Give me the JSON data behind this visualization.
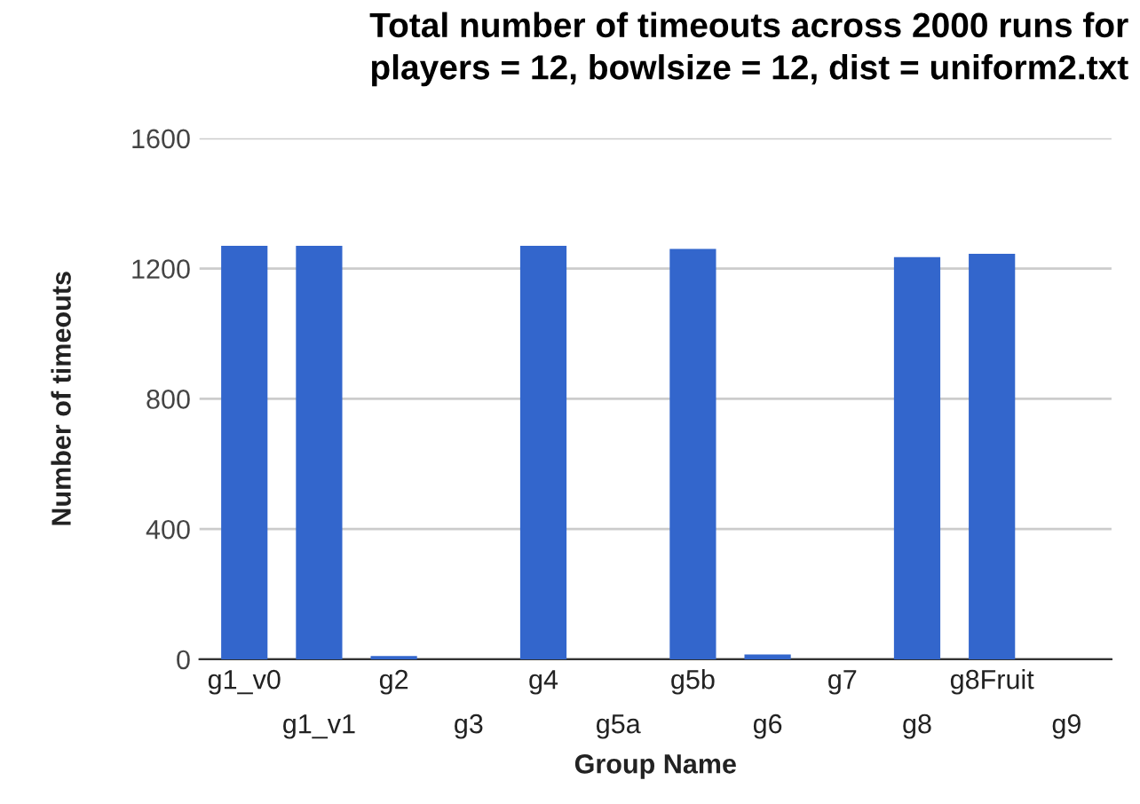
{
  "chart_data": {
    "type": "bar",
    "title": "Total number of timeouts across 2000 runs for\nplayers = 12, bowlsize = 12, dist = uniform2.txt",
    "xlabel": "Group Name",
    "ylabel": "Number of timeouts",
    "categories": [
      "g1_v0",
      "g1_v1",
      "g2",
      "g3",
      "g4",
      "g5a",
      "g5b",
      "g6",
      "g7",
      "g8",
      "g8Fruit",
      "g9"
    ],
    "values": [
      1270,
      1270,
      10,
      0,
      1270,
      0,
      1260,
      15,
      0,
      1235,
      1245,
      0
    ],
    "color": "#3366cc",
    "ylim": [
      0,
      1600
    ],
    "yticks": [
      0,
      400,
      800,
      1200,
      1600
    ],
    "grid": "y",
    "legend": false
  }
}
